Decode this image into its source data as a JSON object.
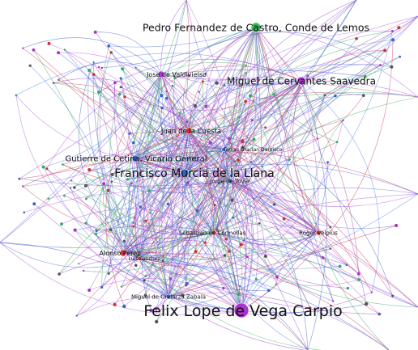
{
  "graph": {
    "edge_colors": [
      "#3355cc",
      "#9944cc",
      "#cc3355",
      "#33aa55",
      "#5577ee",
      "#aa55dd"
    ],
    "node_colors": {
      "red": "#cc3333",
      "blue": "#3366cc",
      "green": "#33bb55",
      "purple": "#aa33cc"
    },
    "labeled_nodes": [
      {
        "id": "n1",
        "label": "Pedro Fernandez de Castro, Conde de Lemos",
        "color": "green",
        "size": "large"
      },
      {
        "id": "n2",
        "label": "Jose de Valdivielso",
        "color": "purple",
        "size": "medium"
      },
      {
        "id": "n3",
        "label": "Miguel de Cervantes Saavedra",
        "color": "purple",
        "size": "large"
      },
      {
        "id": "n4",
        "label": "Juan de la Cuesta",
        "color": "red",
        "size": "medium"
      },
      {
        "id": "n5",
        "label": "Tomas Gracian Dantisco",
        "color": "blue",
        "size": "small"
      },
      {
        "id": "n6",
        "label": "Gutierre de Cetina, Vicario General",
        "color": "blue",
        "size": "medium"
      },
      {
        "id": "n7",
        "label": "Francisco Murcia de la Llana",
        "color": "blue",
        "size": "xlarge"
      },
      {
        "id": "n8",
        "label": "Jorge de Tovar",
        "color": "blue",
        "size": "small"
      },
      {
        "id": "n9",
        "label": "Sebastian de Cormellas",
        "color": "red",
        "size": "small"
      },
      {
        "id": "n10",
        "label": "Roger Velpius",
        "color": "red",
        "size": "small"
      },
      {
        "id": "n11",
        "label": "Alonso Perez",
        "color": "red",
        "size": "medium"
      },
      {
        "id": "n12",
        "label": "Luis Sanchez",
        "color": "red",
        "size": "small"
      },
      {
        "id": "n13",
        "label": "Miguel de Ondarza Zabala",
        "color": "blue",
        "size": "small"
      },
      {
        "id": "n14",
        "label": "Felix Lope de Vega Carpio",
        "color": "purple",
        "size": "huge"
      }
    ]
  }
}
